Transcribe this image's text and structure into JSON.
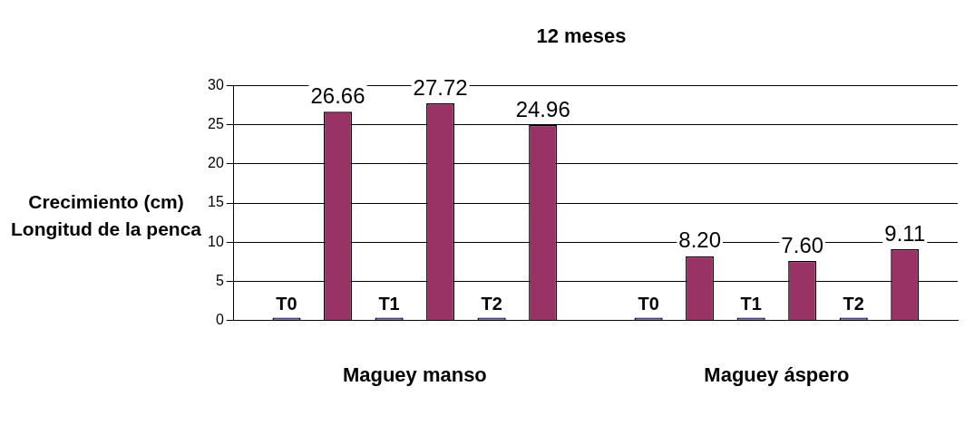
{
  "chart_data": {
    "type": "bar",
    "title": "12 meses",
    "ylabel": "Crecimiento (cm)   Longitud de la penca",
    "categories": [
      "Maguey manso",
      "Maguey áspero"
    ],
    "series": [
      {
        "color": "#7777cc",
        "values": [
          0,
          0
        ],
        "value_labels": [
          "T0",
          "T0"
        ]
      },
      {
        "color": "#993366",
        "values": [
          26.66,
          8.2
        ],
        "value_labels": [
          "26.66",
          "8.20"
        ]
      },
      {
        "color": "#7777cc",
        "values": [
          0,
          0
        ],
        "value_labels": [
          "T1",
          "T1"
        ]
      },
      {
        "color": "#993366",
        "values": [
          27.72,
          7.6
        ],
        "value_labels": [
          "27.72",
          "7.60"
        ]
      },
      {
        "color": "#7777cc",
        "values": [
          0,
          0
        ],
        "value_labels": [
          "T2",
          "T2"
        ]
      },
      {
        "color": "#993366",
        "values": [
          24.96,
          9.11
        ],
        "value_labels": [
          "24.96",
          "9.11"
        ]
      }
    ],
    "ylim": [
      0,
      30
    ],
    "yticks": [
      0,
      5,
      10,
      15,
      20,
      25,
      30
    ],
    "grid": "y",
    "legend": false
  }
}
